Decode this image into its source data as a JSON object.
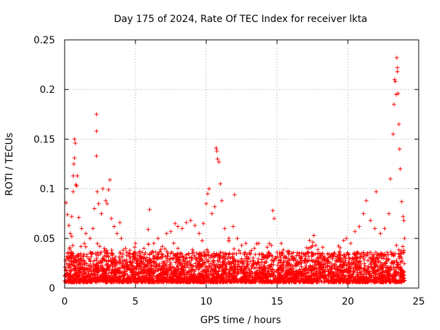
{
  "chart_data": {
    "type": "scatter",
    "title": "Day 175 of 2024, Rate Of TEC Index for receiver lkta",
    "xlabel": "GPS time / hours",
    "ylabel": "ROTI / TECUs",
    "xlim": [
      0,
      25
    ],
    "ylim": [
      0,
      0.25
    ],
    "xticks": [
      0,
      5,
      10,
      15,
      20,
      25
    ],
    "xtick_labels": [
      "0",
      "5",
      "10",
      "15",
      "20",
      "25"
    ],
    "yticks": [
      0,
      0.05,
      0.1,
      0.15,
      0.2,
      0.25
    ],
    "ytick_labels": [
      "0",
      "0.05",
      "0.1",
      "0.15",
      "0.2",
      "0.25"
    ],
    "grid": true,
    "marker": "+",
    "color": "#ff0000",
    "series": [
      {
        "name": "ROTI",
        "points": [
          [
            0.1,
            0.086
          ],
          [
            0.2,
            0.074
          ],
          [
            0.3,
            0.063
          ],
          [
            0.4,
            0.055
          ],
          [
            0.5,
            0.052
          ],
          [
            0.6,
            0.097
          ],
          [
            0.6,
            0.113
          ],
          [
            0.65,
            0.125
          ],
          [
            0.7,
            0.131
          ],
          [
            0.7,
            0.15
          ],
          [
            0.75,
            0.146
          ],
          [
            0.8,
            0.104
          ],
          [
            0.85,
            0.103
          ],
          [
            0.9,
            0.113
          ],
          [
            0.5,
            0.072
          ],
          [
            1.0,
            0.071
          ],
          [
            1.2,
            0.06
          ],
          [
            1.5,
            0.055
          ],
          [
            1.8,
            0.05
          ],
          [
            2.0,
            0.06
          ],
          [
            2.1,
            0.08
          ],
          [
            2.25,
            0.175
          ],
          [
            2.25,
            0.158
          ],
          [
            2.25,
            0.133
          ],
          [
            2.3,
            0.097
          ],
          [
            2.4,
            0.085
          ],
          [
            2.6,
            0.075
          ],
          [
            2.7,
            0.1
          ],
          [
            2.9,
            0.088
          ],
          [
            3.0,
            0.085
          ],
          [
            3.1,
            0.099
          ],
          [
            3.2,
            0.109
          ],
          [
            3.3,
            0.07
          ],
          [
            3.5,
            0.062
          ],
          [
            3.7,
            0.055
          ],
          [
            3.9,
            0.066
          ],
          [
            4.0,
            0.05
          ],
          [
            4.3,
            0.04
          ],
          [
            4.6,
            0.038
          ],
          [
            5.0,
            0.045
          ],
          [
            5.3,
            0.037
          ],
          [
            5.6,
            0.04
          ],
          [
            5.9,
            0.059
          ],
          [
            6.0,
            0.079
          ],
          [
            6.3,
            0.045
          ],
          [
            6.6,
            0.05
          ],
          [
            6.9,
            0.042
          ],
          [
            7.2,
            0.055
          ],
          [
            7.5,
            0.057
          ],
          [
            7.8,
            0.065
          ],
          [
            8.0,
            0.062
          ],
          [
            8.3,
            0.06
          ],
          [
            8.6,
            0.066
          ],
          [
            8.9,
            0.068
          ],
          [
            9.2,
            0.063
          ],
          [
            9.5,
            0.055
          ],
          [
            9.8,
            0.065
          ],
          [
            10.0,
            0.085
          ],
          [
            10.1,
            0.095
          ],
          [
            10.2,
            0.1
          ],
          [
            10.4,
            0.075
          ],
          [
            10.6,
            0.082
          ],
          [
            10.7,
            0.141
          ],
          [
            10.75,
            0.138
          ],
          [
            10.8,
            0.13
          ],
          [
            10.9,
            0.127
          ],
          [
            11.0,
            0.105
          ],
          [
            11.1,
            0.088
          ],
          [
            11.3,
            0.06
          ],
          [
            11.6,
            0.05
          ],
          [
            11.9,
            0.062
          ],
          [
            12.0,
            0.094
          ],
          [
            12.2,
            0.05
          ],
          [
            12.5,
            0.043
          ],
          [
            12.8,
            0.045
          ],
          [
            13.1,
            0.035
          ],
          [
            13.4,
            0.04
          ],
          [
            13.7,
            0.045
          ],
          [
            14.0,
            0.032
          ],
          [
            14.3,
            0.03
          ],
          [
            14.6,
            0.043
          ],
          [
            14.7,
            0.078
          ],
          [
            14.8,
            0.07
          ],
          [
            15.0,
            0.036
          ],
          [
            15.3,
            0.045
          ],
          [
            15.6,
            0.03
          ],
          [
            15.9,
            0.028
          ],
          [
            16.2,
            0.03
          ],
          [
            16.6,
            0.025
          ],
          [
            17.0,
            0.032
          ],
          [
            17.3,
            0.048
          ],
          [
            17.6,
            0.053
          ],
          [
            17.9,
            0.035
          ],
          [
            18.2,
            0.03
          ],
          [
            18.5,
            0.028
          ],
          [
            18.8,
            0.025
          ],
          [
            19.1,
            0.02
          ],
          [
            19.4,
            0.03
          ],
          [
            19.7,
            0.048
          ],
          [
            19.9,
            0.05
          ],
          [
            20.2,
            0.045
          ],
          [
            20.5,
            0.057
          ],
          [
            20.8,
            0.062
          ],
          [
            21.1,
            0.075
          ],
          [
            21.3,
            0.088
          ],
          [
            21.6,
            0.068
          ],
          [
            21.9,
            0.06
          ],
          [
            22.0,
            0.097
          ],
          [
            22.3,
            0.055
          ],
          [
            22.6,
            0.06
          ],
          [
            22.9,
            0.075
          ],
          [
            23.0,
            0.11
          ],
          [
            23.2,
            0.155
          ],
          [
            23.25,
            0.185
          ],
          [
            23.3,
            0.21
          ],
          [
            23.35,
            0.208
          ],
          [
            23.4,
            0.195
          ],
          [
            23.45,
            0.232
          ],
          [
            23.5,
            0.222
          ],
          [
            23.5,
            0.218
          ],
          [
            23.55,
            0.196
          ],
          [
            23.6,
            0.165
          ],
          [
            23.65,
            0.14
          ],
          [
            23.7,
            0.12
          ],
          [
            23.8,
            0.087
          ],
          [
            23.9,
            0.072
          ],
          [
            23.95,
            0.068
          ],
          [
            24.0,
            0.05
          ],
          [
            0.3,
            0.03
          ],
          [
            1.3,
            0.032
          ],
          [
            2.8,
            0.04
          ],
          [
            4.2,
            0.028
          ],
          [
            6.5,
            0.03
          ],
          [
            8.0,
            0.04
          ],
          [
            9.0,
            0.035
          ],
          [
            11.5,
            0.03
          ],
          [
            12.9,
            0.025
          ],
          [
            14.2,
            0.02
          ],
          [
            16.0,
            0.018
          ],
          [
            17.8,
            0.02
          ],
          [
            19.0,
            0.015
          ],
          [
            20.7,
            0.03
          ],
          [
            22.4,
            0.032
          ],
          [
            23.7,
            0.035
          ],
          [
            0.8,
            0.012
          ],
          [
            3.6,
            0.01
          ],
          [
            7.0,
            0.015
          ],
          [
            10.4,
            0.012
          ],
          [
            13.6,
            0.008
          ],
          [
            15.4,
            0.006
          ],
          [
            18.0,
            0.01
          ],
          [
            21.0,
            0.012
          ],
          [
            23.4,
            0.015
          ]
        ]
      }
    ]
  }
}
